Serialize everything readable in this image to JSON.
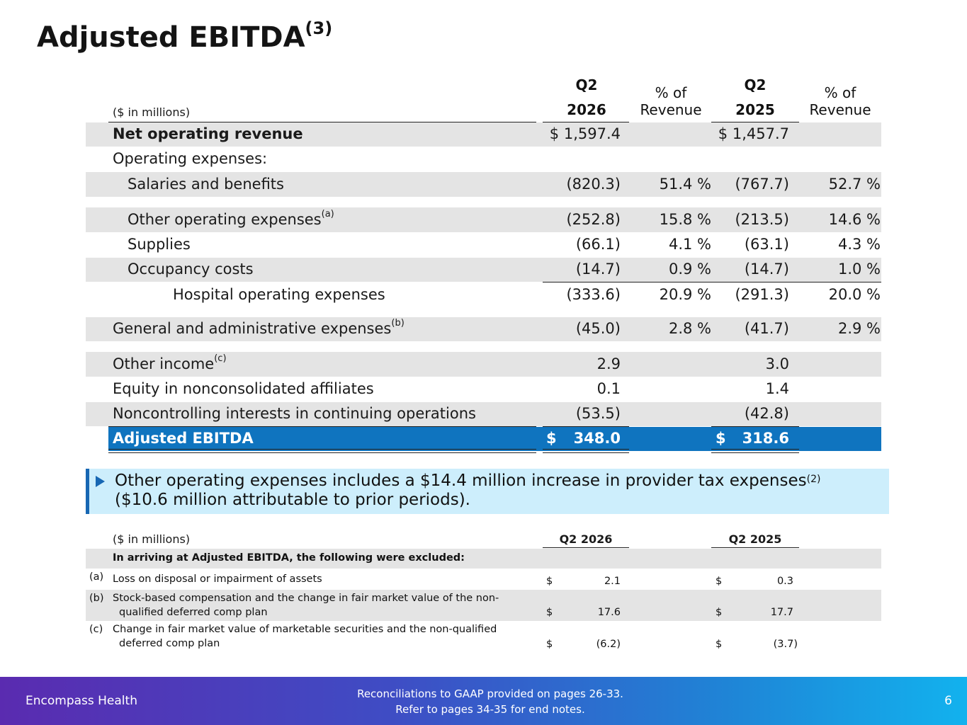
{
  "title": "Adjusted EBITDA",
  "title_sup": "(3)",
  "main_table": {
    "units": "($ in millions)",
    "headers": {
      "q2_2026_line1": "Q2",
      "q2_2026_line2": "2026",
      "pct1_line1": "% of",
      "pct1_line2": "Revenue",
      "q2_2025_line1": "Q2",
      "q2_2025_line2": "2025",
      "pct2_line1": "% of",
      "pct2_line2": "Revenue"
    },
    "rows": [
      {
        "label": "Net operating revenue",
        "sup": "",
        "v2026": "$ 1,597.4",
        "p2026": "",
        "v2025": "$ 1,457.7",
        "p2025": ""
      },
      {
        "label": "Operating expenses:",
        "sup": "",
        "v2026": "",
        "p2026": "",
        "v2025": "",
        "p2025": ""
      },
      {
        "label": "Salaries and benefits",
        "sup": "",
        "v2026": "(820.3)",
        "p2026": "51.4 %",
        "v2025": "(767.7)",
        "p2025": "52.7 %"
      },
      {
        "label": "Other operating expenses",
        "sup": "(a)",
        "v2026": "(252.8)",
        "p2026": "15.8 %",
        "v2025": "(213.5)",
        "p2025": "14.6 %"
      },
      {
        "label": "Supplies",
        "sup": "",
        "v2026": "(66.1)",
        "p2026": "4.1 %",
        "v2025": "(63.1)",
        "p2025": "4.3 %"
      },
      {
        "label": "Occupancy costs",
        "sup": "",
        "v2026": "(14.7)",
        "p2026": "0.9 %",
        "v2025": "(14.7)",
        "p2025": "1.0 %"
      },
      {
        "label": "Hospital operating expenses",
        "sup": "",
        "v2026": "(333.6)",
        "p2026": "20.9 %",
        "v2025": "(291.3)",
        "p2025": "20.0 %"
      },
      {
        "label": "General and administrative expenses",
        "sup": "(b)",
        "v2026": "(45.0)",
        "p2026": "2.8 %",
        "v2025": "(41.7)",
        "p2025": "2.9 %"
      },
      {
        "label": "Other income",
        "sup": "(c)",
        "v2026": "2.9",
        "p2026": "",
        "v2025": "3.0",
        "p2025": ""
      },
      {
        "label": "Equity in nonconsolidated affiliates",
        "sup": "",
        "v2026": "0.1",
        "p2026": "",
        "v2025": "1.4",
        "p2025": ""
      },
      {
        "label": "Noncontrolling interests in continuing operations",
        "sup": "",
        "v2026": "(53.5)",
        "p2026": "",
        "v2025": "(42.8)",
        "p2025": ""
      }
    ],
    "total": {
      "label": "Adjusted EBITDA",
      "cur2026": "$",
      "v2026": "348.0",
      "cur2025": "$",
      "v2025": "318.6"
    }
  },
  "callout": {
    "line1": "Other operating expenses includes a $14.4 million increase in provider tax expenses",
    "line1_sup": "(2)",
    "line2": "($10.6 million attributable to prior periods)."
  },
  "exclusions": {
    "units": "($ in millions)",
    "col1": "Q2 2026",
    "col2": "Q2 2025",
    "heading": "In arriving at Adjusted EBITDA, the following were excluded:",
    "items": [
      {
        "tag": "(a)",
        "line1": "Loss on disposal or impairment of assets",
        "line2": "",
        "cur1": "$",
        "v1": "2.1",
        "cur2": "$",
        "v2": "0.3"
      },
      {
        "tag": "(b)",
        "line1": "Stock-based compensation and the change in fair market value of the non-",
        "line2": "qualified deferred comp plan",
        "cur1": "$",
        "v1": "17.6",
        "cur2": "$",
        "v2": "17.7"
      },
      {
        "tag": "(c)",
        "line1": "Change in fair market value of marketable securities and the non-qualified",
        "line2": "deferred comp plan",
        "cur1": "$",
        "v1": "(6.2)",
        "cur2": "$",
        "v2": "(3.7)"
      }
    ]
  },
  "footer": {
    "brand": "Encompass Health",
    "note_line1": "Reconciliations to GAAP provided on pages 26-33.",
    "note_line2": "Refer to pages 34-35 for end notes.",
    "page": "6"
  }
}
